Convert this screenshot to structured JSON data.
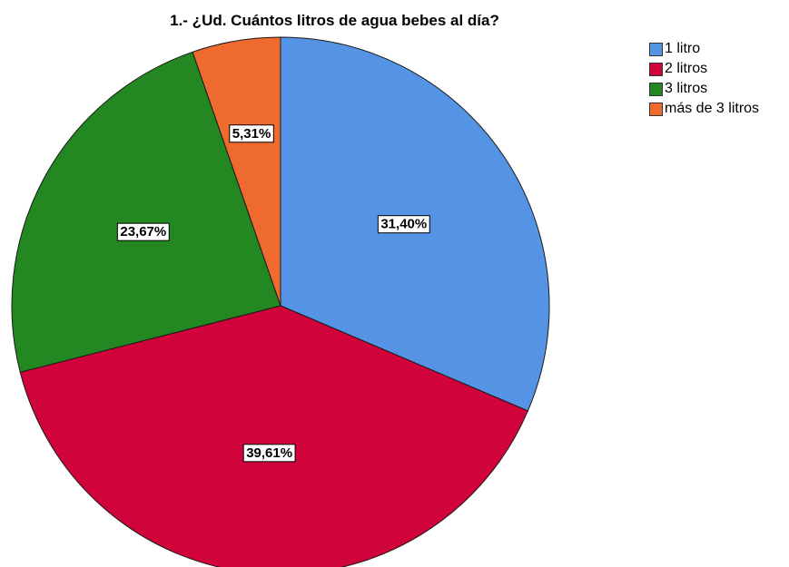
{
  "chart_data": {
    "type": "pie",
    "title": "1.- ¿Ud. Cuántos litros de agua bebes al día?",
    "slices": [
      {
        "name": "1 litro",
        "value": 31.4,
        "label": "31,40%",
        "color": "#5594e4"
      },
      {
        "name": "2 litros",
        "value": 39.61,
        "label": "39,61%",
        "color": "#d0043a"
      },
      {
        "name": "3 litros",
        "value": 23.67,
        "label": "23,67%",
        "color": "#238822"
      },
      {
        "name": "más de 3 litros",
        "value": 5.31,
        "label": "5,31%",
        "color": "#ee6a2e"
      }
    ],
    "legend_position": "top-right"
  }
}
